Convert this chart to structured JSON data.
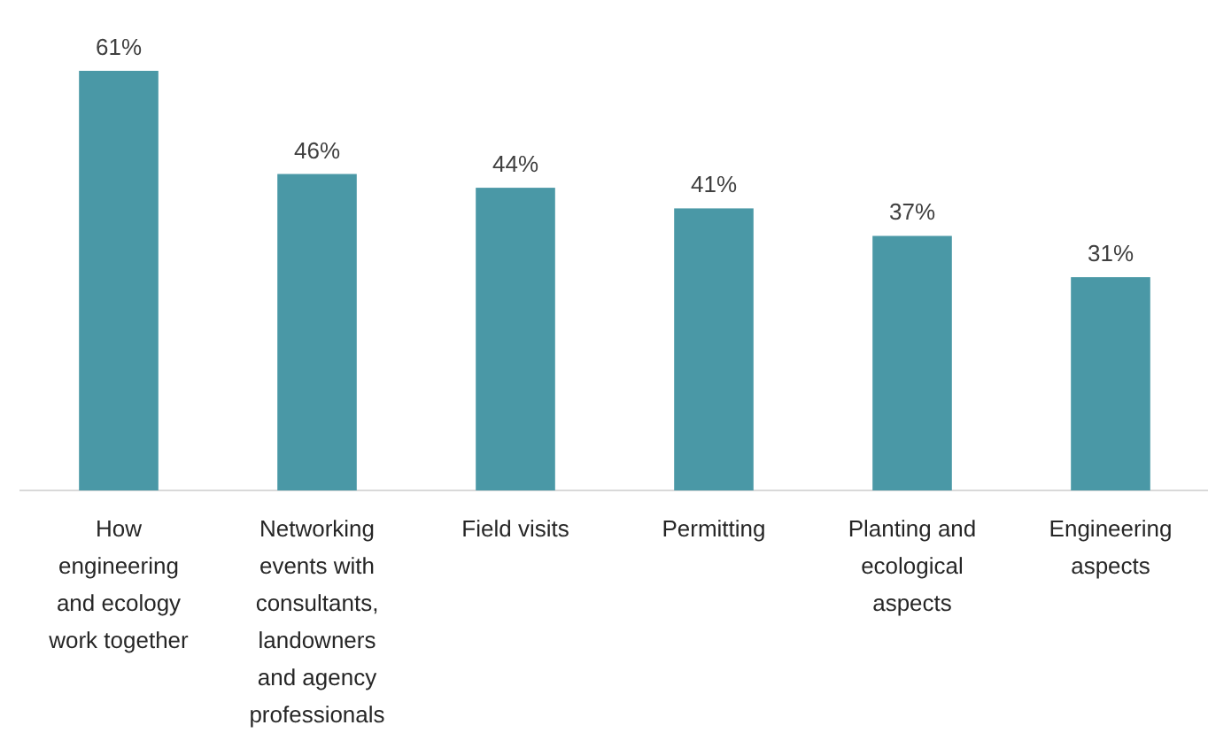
{
  "chart_data": {
    "type": "bar",
    "categories": [
      "How engineering and ecology work together",
      "Networking events with consultants, landowners and agency professionals",
      "Field visits",
      "Permitting",
      "Planting and ecological aspects",
      "Engineering aspects"
    ],
    "values": [
      61,
      46,
      44,
      41,
      37,
      31
    ],
    "value_labels": [
      "61%",
      "46%",
      "44%",
      "41%",
      "37%",
      "31%"
    ],
    "color": "#4a98a6"
  }
}
